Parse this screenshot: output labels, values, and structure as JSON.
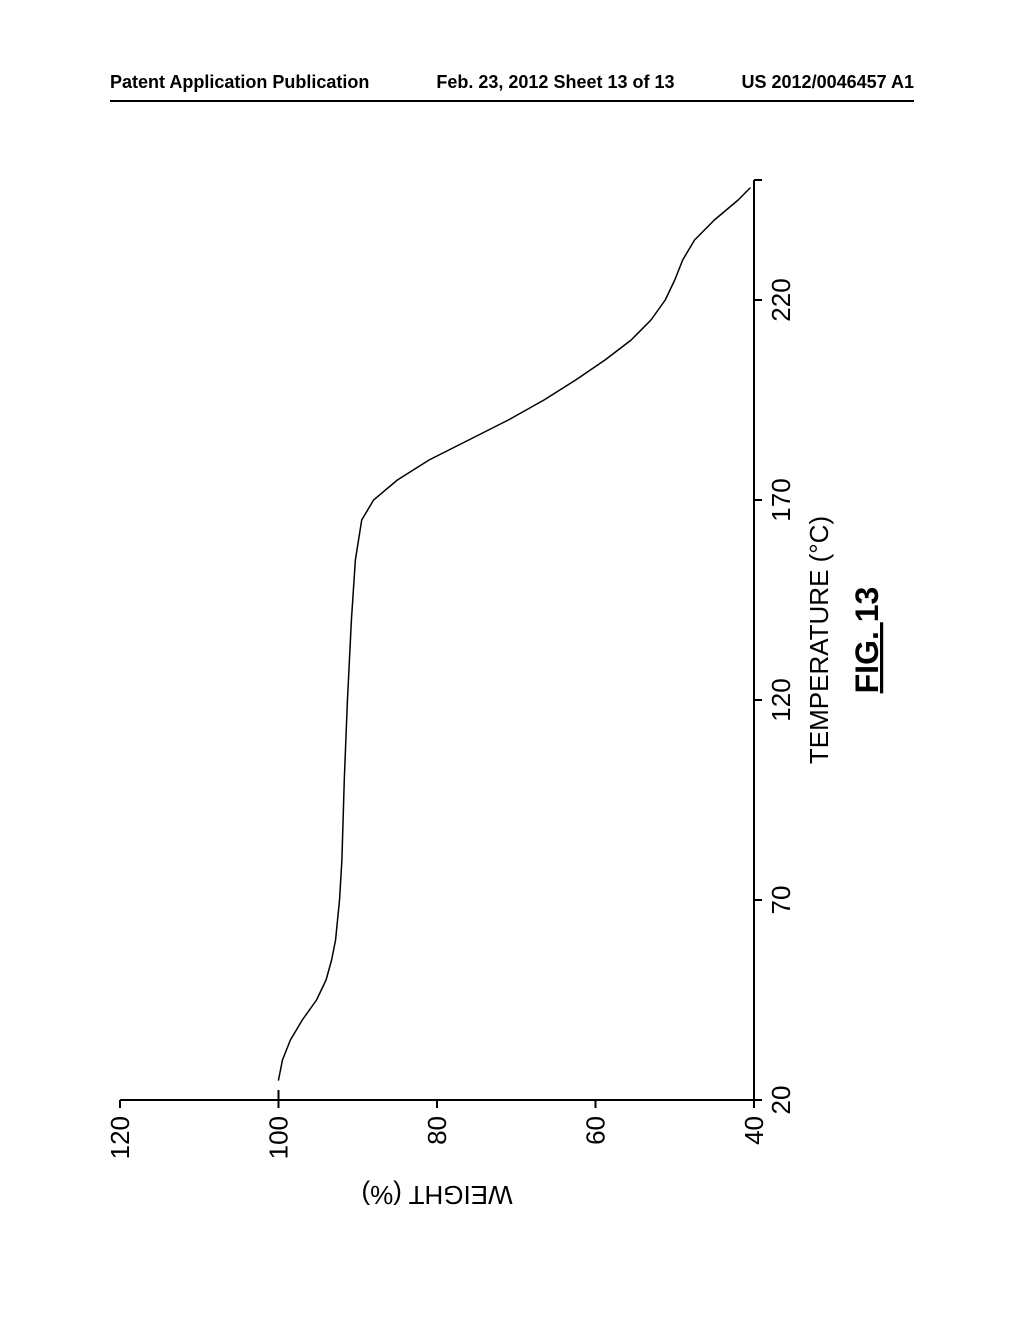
{
  "header": {
    "left": "Patent Application Publication",
    "center": "Feb. 23, 2012  Sheet 13 of 13",
    "right": "US 2012/0046457 A1"
  },
  "chart": {
    "type": "line",
    "background_color": "#ffffff",
    "line_color": "#000000",
    "line_width": 1.5,
    "axis_color": "#000000",
    "axis_width": 2,
    "tick_length": 8,
    "tick_width": 2,
    "font_family": "Arial",
    "x": {
      "label": "TEMPERATURE (°C)",
      "label_fontsize": 26,
      "lim": [
        20,
        250
      ],
      "ticks": [
        20,
        70,
        120,
        170,
        220
      ],
      "tick_fontsize": 26
    },
    "y": {
      "label": "WEIGHT (%)",
      "label_fontsize": 26,
      "lim": [
        40,
        120
      ],
      "ticks": [
        40,
        60,
        80,
        100,
        120
      ],
      "tick_fontsize": 26
    },
    "figure_label": "FIG. 13",
    "figure_label_fontsize": 32,
    "figure_label_underline": true,
    "data": [
      [
        25,
        100.0
      ],
      [
        30,
        99.5
      ],
      [
        35,
        98.5
      ],
      [
        40,
        97.0
      ],
      [
        45,
        95.2
      ],
      [
        50,
        94.0
      ],
      [
        55,
        93.3
      ],
      [
        60,
        92.8
      ],
      [
        70,
        92.3
      ],
      [
        80,
        92.0
      ],
      [
        100,
        91.7
      ],
      [
        120,
        91.3
      ],
      [
        140,
        90.8
      ],
      [
        155,
        90.3
      ],
      [
        165,
        89.5
      ],
      [
        170,
        88.0
      ],
      [
        175,
        85.0
      ],
      [
        180,
        81.0
      ],
      [
        185,
        76.0
      ],
      [
        190,
        71.0
      ],
      [
        195,
        66.5
      ],
      [
        200,
        62.5
      ],
      [
        205,
        58.8
      ],
      [
        210,
        55.5
      ],
      [
        215,
        53.0
      ],
      [
        220,
        51.2
      ],
      [
        225,
        50.0
      ],
      [
        230,
        49.0
      ],
      [
        235,
        47.5
      ],
      [
        240,
        45.0
      ],
      [
        245,
        42.0
      ],
      [
        248,
        40.5
      ]
    ]
  }
}
